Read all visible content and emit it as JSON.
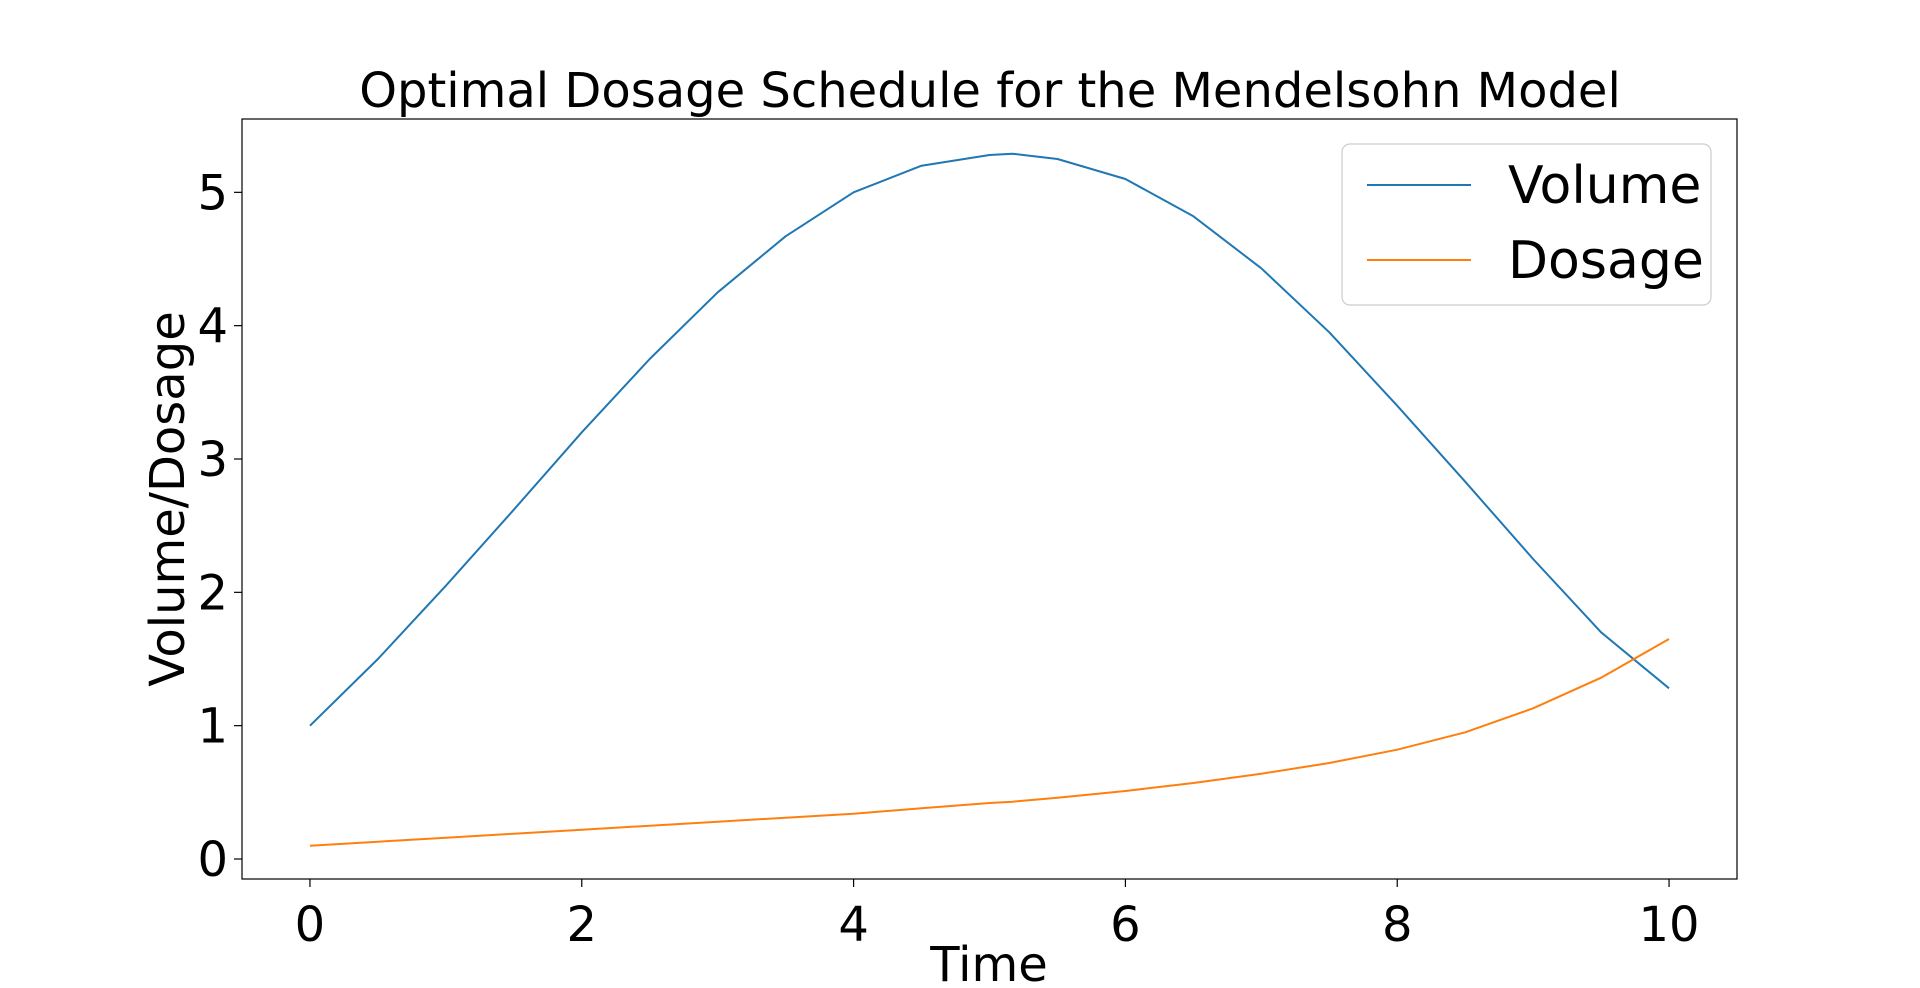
{
  "chart_data": {
    "type": "line",
    "title": "Optimal Dosage Schedule for the Mendelsohn Model",
    "xlabel": "Time",
    "ylabel": "Volume/Dosage",
    "xlim": [
      -0.5,
      10.5
    ],
    "ylim": [
      -0.15,
      5.55
    ],
    "xticks": [
      0,
      2,
      4,
      6,
      8,
      10
    ],
    "yticks": [
      0,
      1,
      2,
      3,
      4,
      5
    ],
    "grid": false,
    "legend_position": "top-right",
    "x": [
      0,
      0.5,
      1,
      1.5,
      2,
      2.5,
      3,
      3.5,
      4,
      4.5,
      5,
      5.17,
      5.5,
      6,
      6.5,
      7,
      7.5,
      8,
      8.5,
      9,
      9.5,
      10
    ],
    "series": [
      {
        "name": "Volume",
        "color": "#1f77b4",
        "values": [
          1.0,
          1.5,
          2.05,
          2.62,
          3.2,
          3.75,
          4.25,
          4.67,
          5.0,
          5.2,
          5.28,
          5.29,
          5.25,
          5.1,
          4.82,
          4.43,
          3.95,
          3.4,
          2.83,
          2.25,
          1.7,
          1.28
        ]
      },
      {
        "name": "Dosage",
        "color": "#ff7f0e",
        "values": [
          0.1,
          0.13,
          0.16,
          0.19,
          0.22,
          0.25,
          0.28,
          0.31,
          0.34,
          0.38,
          0.42,
          0.43,
          0.46,
          0.51,
          0.57,
          0.64,
          0.72,
          0.82,
          0.95,
          1.13,
          1.36,
          1.65
        ]
      }
    ]
  }
}
